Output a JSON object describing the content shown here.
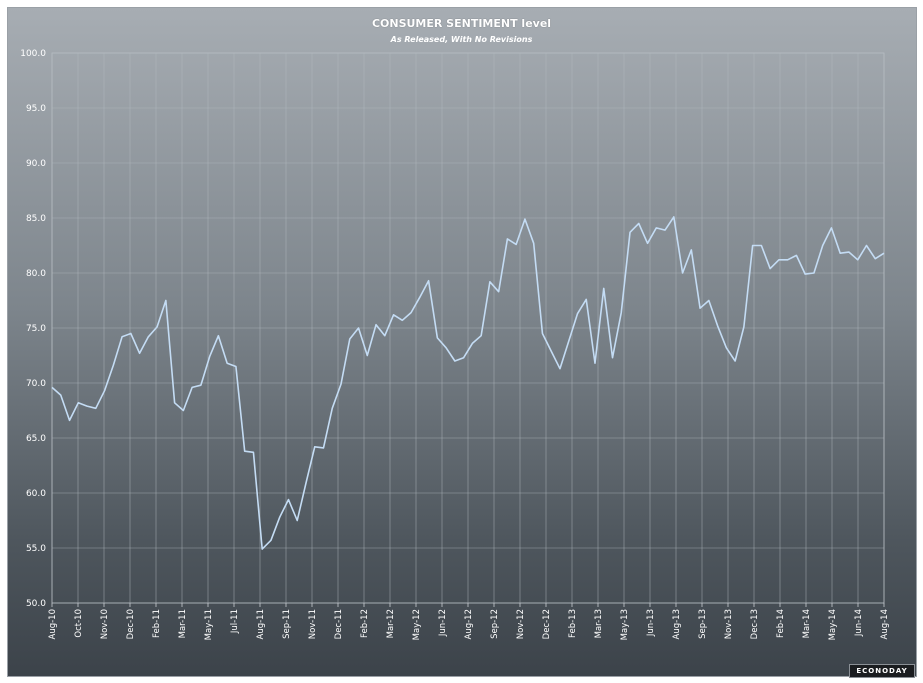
{
  "chart_data": {
    "type": "line",
    "title": "CONSUMER SENTIMENT level",
    "subtitle": "As Released, With No Revisions",
    "ylim": [
      50,
      100
    ],
    "yticks": [
      "50.0",
      "55.0",
      "60.0",
      "65.0",
      "70.0",
      "75.0",
      "80.0",
      "85.0",
      "90.0",
      "95.0",
      "100.0"
    ],
    "xtick_labels": [
      "Aug-10",
      "Oct-10",
      "Nov-10",
      "Dec-10",
      "Feb-11",
      "Mar-11",
      "May-11",
      "Jul-11",
      "Aug-11",
      "Sep-11",
      "Nov-11",
      "Dec-11",
      "Feb-12",
      "Mar-12",
      "May-12",
      "Jun-12",
      "Aug-12",
      "Sep-12",
      "Nov-12",
      "Dec-12",
      "Feb-13",
      "Mar-13",
      "May-13",
      "Jun-13",
      "Aug-13",
      "Sep-13",
      "Nov-13",
      "Dec-13",
      "Feb-14",
      "Mar-14",
      "May-14",
      "Jun-14",
      "Aug-14"
    ],
    "grid": true,
    "line_color": "#c4dcf4",
    "series": [
      {
        "values": [
          69.6,
          68.9,
          66.6,
          68.2,
          67.9,
          67.7,
          69.3,
          71.6,
          74.2,
          74.5,
          72.7,
          74.2,
          75.1,
          77.5,
          68.2,
          67.5,
          69.6,
          69.8,
          72.4,
          74.3,
          71.8,
          71.5,
          63.8,
          63.7,
          54.9,
          55.7,
          57.8,
          59.4,
          57.5,
          60.9,
          64.2,
          64.1,
          67.7,
          69.9,
          74.0,
          75.0,
          72.5,
          75.3,
          74.3,
          76.2,
          75.7,
          76.4,
          77.8,
          79.3,
          74.1,
          73.2,
          72.0,
          72.3,
          73.6,
          74.3,
          79.2,
          78.3,
          83.1,
          82.6,
          84.9,
          82.7,
          74.5,
          72.9,
          71.3,
          73.8,
          76.3,
          77.6,
          71.8,
          78.6,
          72.3,
          76.4,
          83.7,
          84.5,
          82.7,
          84.1,
          83.9,
          85.1,
          80.0,
          82.1,
          76.8,
          77.5,
          75.2,
          73.2,
          72.0,
          75.1,
          82.5,
          82.5,
          80.4,
          81.2,
          81.2,
          81.6,
          79.9,
          80.0,
          82.5,
          84.1,
          81.8,
          81.9,
          81.2,
          82.5,
          81.3,
          81.8
        ]
      }
    ]
  },
  "badge": "ECONODAY"
}
